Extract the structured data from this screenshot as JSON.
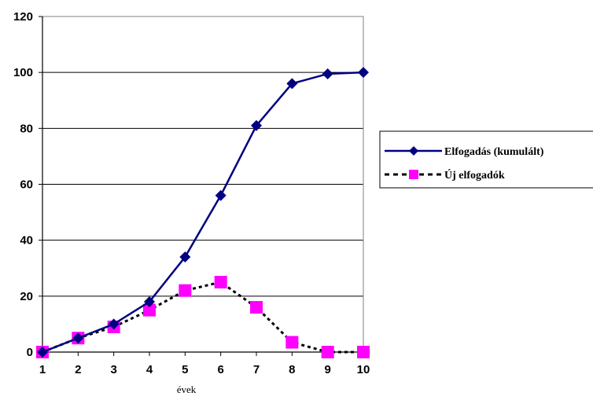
{
  "chart_data": {
    "type": "line",
    "xlabel": "évek",
    "ylabel": "",
    "title": "",
    "x": [
      1,
      2,
      3,
      4,
      5,
      6,
      7,
      8,
      9,
      10
    ],
    "ylim": [
      0,
      120
    ],
    "yticks": [
      0,
      20,
      40,
      60,
      80,
      100,
      120
    ],
    "grid": "horizontal",
    "legend_position": "right",
    "series": [
      {
        "name": "Elfogadás (kumulált)",
        "values": [
          0,
          5,
          10,
          18,
          34,
          56,
          81,
          96,
          99.5,
          100
        ],
        "color": "#000080",
        "marker": "diamond",
        "line": "solid"
      },
      {
        "name": "Új elfogadók",
        "values": [
          0,
          5,
          9,
          15,
          22,
          25,
          16,
          3.5,
          0,
          0
        ],
        "color": "#ff00ff",
        "line_color": "#000000",
        "marker": "square",
        "line": "dotted"
      }
    ]
  }
}
